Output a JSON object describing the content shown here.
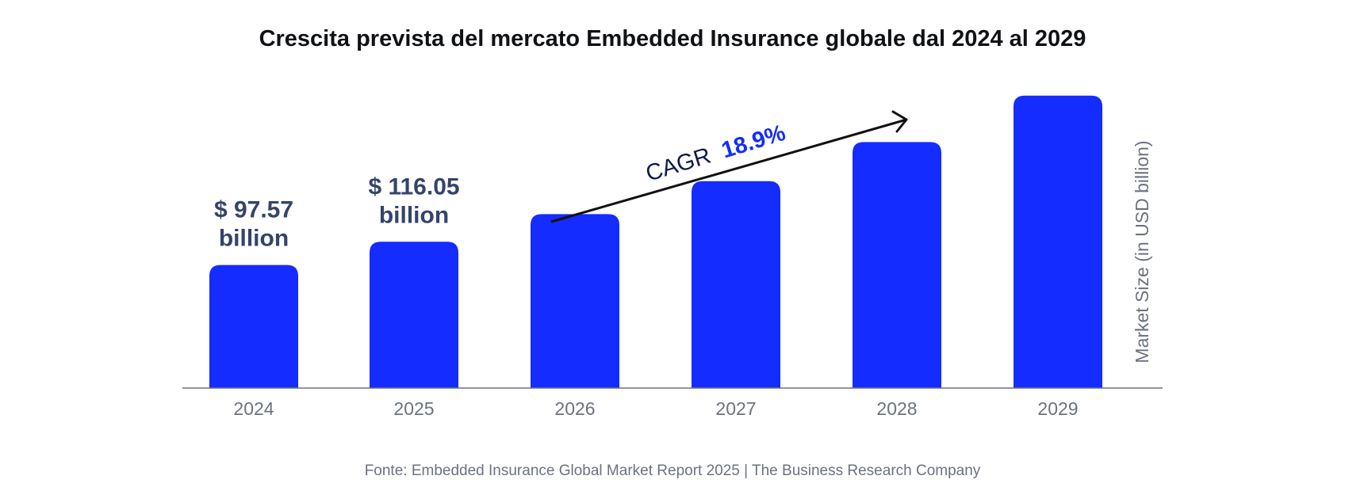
{
  "chart_data": {
    "type": "bar",
    "title": "Crescita prevista del mercato Embedded Insurance globale dal 2024 al 2029",
    "categories": [
      "2024",
      "2025",
      "2026",
      "2027",
      "2028",
      "2029"
    ],
    "values": [
      97.57,
      116.05,
      138.0,
      164.1,
      195.1,
      232.0
    ],
    "data_labels": [
      {
        "index": 0,
        "line1": "$ 97.57",
        "line2": "billion"
      },
      {
        "index": 1,
        "line1": "$ 116.05",
        "line2": "billion"
      }
    ],
    "ylabel": "Market Size (in USD billion)",
    "xlabel": "",
    "ylim": [
      0,
      245
    ],
    "grid": false,
    "annotation": {
      "prefix": "CAGR",
      "value": "18.9%"
    },
    "source": "Fonte: Embedded Insurance Global Market Report 2025 | The Business Research Company",
    "colors": {
      "bar": "#142cff",
      "title": "#0f1115",
      "label": "#34446a",
      "tick": "#6b7280",
      "axis": "#6b7280",
      "cagr_prefix": "#0e1a4a",
      "cagr_value": "#142cff",
      "arrow": "#111111"
    }
  }
}
